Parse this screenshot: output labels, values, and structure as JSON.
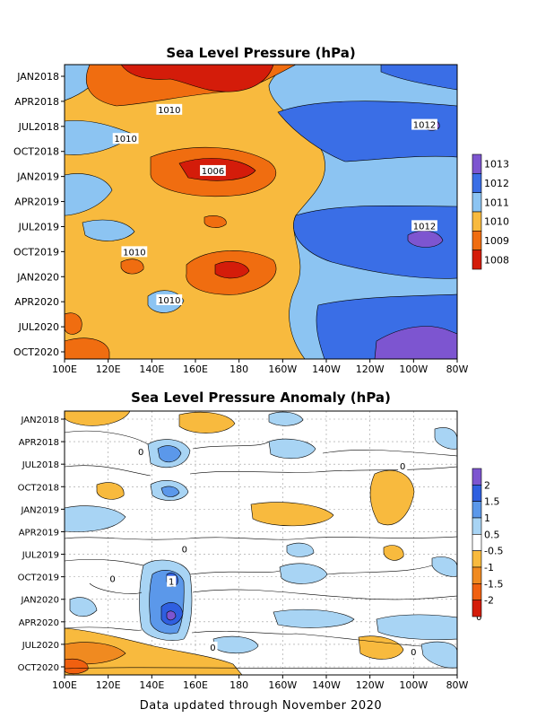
{
  "chart_data": [
    {
      "type": "heatmap",
      "title": "Sea Level Pressure (hPa)",
      "x_ticks": [
        "100E",
        "120E",
        "140E",
        "160E",
        "180",
        "160W",
        "140W",
        "120W",
        "100W",
        "80W"
      ],
      "y_ticks": [
        "JAN2018",
        "APR2018",
        "JUL2018",
        "OCT2018",
        "JAN2019",
        "APR2019",
        "JUL2019",
        "OCT2019",
        "JAN2020",
        "APR2020",
        "JUL2020",
        "OCT2020"
      ],
      "legend_levels": [
        "1013",
        "1012",
        "1011",
        "1010",
        "1009",
        "1008"
      ],
      "legend_colors": [
        "#7d55d0",
        "#3a6ee6",
        "#8cc4f2",
        "#f8ba3e",
        "#f06d10",
        "#d41c0a"
      ],
      "contour_labels": [
        {
          "text": "1010",
          "x_deg": 148,
          "time": 2018.33
        },
        {
          "text": "1010",
          "x_deg": 128,
          "time": 2018.62
        },
        {
          "text": "1012",
          "x_deg": 265,
          "time": 2018.48
        },
        {
          "text": "1006",
          "x_deg": 168,
          "time": 2018.94
        },
        {
          "text": "1012",
          "x_deg": 265,
          "time": 2019.49
        },
        {
          "text": "1010",
          "x_deg": 132,
          "time": 2019.75
        },
        {
          "text": "1012",
          "x_deg": 345,
          "time": 2019.97
        },
        {
          "text": "1010",
          "x_deg": 148,
          "time": 2020.23
        },
        {
          "text": "1012",
          "x_deg": 330,
          "time": 2020.27
        }
      ]
    },
    {
      "type": "heatmap",
      "title": "Sea Level Pressure Anomaly (hPa)",
      "x_ticks": [
        "100E",
        "120E",
        "140E",
        "160E",
        "180",
        "160W",
        "140W",
        "120W",
        "100W",
        "80W"
      ],
      "y_ticks": [
        "JAN2018",
        "APR2018",
        "JUL2018",
        "OCT2018",
        "JAN2019",
        "APR2019",
        "JUL2019",
        "OCT2019",
        "JAN2020",
        "APR2020",
        "JUL2020",
        "OCT2020"
      ],
      "legend_levels": [
        "2",
        "1.5",
        "1",
        "0.5",
        "-0.5",
        "-1",
        "-1.5",
        "-2"
      ],
      "legend_colors": [
        "#7d55d0",
        "#2f5fe0",
        "#5b98ea",
        "#a8d4f4",
        "#ffffff",
        "#f8ba3e",
        "#f08a20",
        "#f06010",
        "#d41c0a"
      ],
      "contour_labels": [
        {
          "text": "0",
          "x_deg": 135,
          "time": 2018.36
        },
        {
          "text": "0",
          "x_deg": 255,
          "time": 2018.52
        },
        {
          "text": "0",
          "x_deg": 155,
          "time": 2019.44
        },
        {
          "text": "0",
          "x_deg": 122,
          "time": 2019.77
        },
        {
          "text": "1",
          "x_deg": 149,
          "time": 2019.8
        },
        {
          "text": "0",
          "x_deg": 168,
          "time": 2020.53
        },
        {
          "text": "0",
          "x_deg": 290,
          "time": 2020.19
        },
        {
          "text": "0",
          "x_deg": 260,
          "time": 2020.58
        }
      ]
    }
  ],
  "footer": "Data updated through November 2020"
}
